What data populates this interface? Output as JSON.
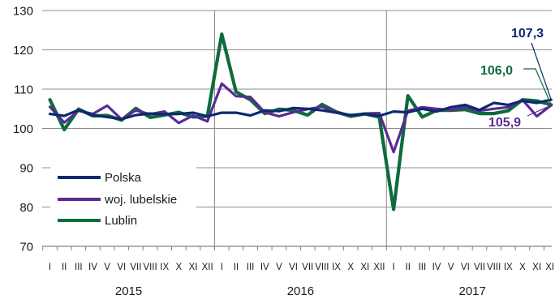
{
  "chart_data": {
    "type": "line",
    "title": "",
    "xlabel": "",
    "ylabel": "",
    "ylim": [
      70,
      130
    ],
    "yticks": [
      70,
      80,
      90,
      100,
      110,
      120,
      130
    ],
    "grid": "horizontal",
    "legend_position": "bottom-left",
    "months": [
      "I",
      "II",
      "III",
      "IV",
      "V",
      "VI",
      "VII",
      "VIII",
      "IX",
      "X",
      "XI",
      "XII"
    ],
    "years": [
      "2015",
      "2016",
      "2017"
    ],
    "series": [
      {
        "name": "Polska",
        "color": "#0b2a6e",
        "values": [
          103.7,
          103.2,
          104.7,
          103.4,
          102.9,
          102.4,
          103.4,
          103.8,
          103.6,
          103.7,
          104.0,
          103.1,
          104.0,
          104.0,
          103.3,
          104.6,
          104.4,
          105.2,
          105.0,
          104.6,
          104.0,
          103.4,
          103.7,
          103.2,
          104.3,
          104.1,
          105.0,
          104.3,
          105.4,
          106.0,
          104.7,
          106.5,
          106.0,
          107.0,
          106.5,
          107.3
        ]
      },
      {
        "name": "woj. lubelskie",
        "color": "#5b2a94",
        "values": [
          105.5,
          101.5,
          104.5,
          103.7,
          105.8,
          102.3,
          104.6,
          103.6,
          104.3,
          101.4,
          103.3,
          101.8,
          111.4,
          108.2,
          108.0,
          104.1,
          103.1,
          104.1,
          104.9,
          105.5,
          104.1,
          103.3,
          103.8,
          103.9,
          94.0,
          104.5,
          105.4,
          105.0,
          104.7,
          105.4,
          104.5,
          105.0,
          105.4,
          107.3,
          103.1,
          105.9
        ]
      },
      {
        "name": "Lublin",
        "color": "#0e6b3c",
        "values": [
          107.3,
          99.7,
          104.9,
          103.2,
          103.3,
          102.1,
          105.1,
          102.8,
          103.4,
          104.1,
          102.9,
          103.1,
          124.0,
          109.3,
          107.3,
          103.8,
          104.9,
          104.6,
          103.4,
          106.1,
          104.2,
          103.1,
          103.7,
          102.9,
          79.4,
          108.3,
          102.9,
          104.6,
          104.6,
          104.8,
          103.8,
          103.8,
          104.5,
          107.3,
          107.0,
          106.0
        ]
      }
    ],
    "annotations": [
      {
        "text": "107,3",
        "series": "Polska",
        "color": "#0b2a6e"
      },
      {
        "text": "106,0",
        "series": "Lublin",
        "color": "#0e6b3c"
      },
      {
        "text": "105,9",
        "series": "woj. lubelskie",
        "color": "#5b2a94"
      }
    ]
  }
}
